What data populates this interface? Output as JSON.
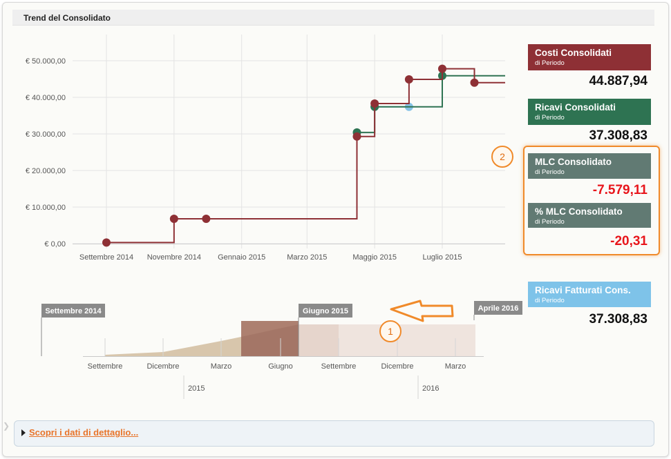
{
  "panel": {
    "title": "Trend del Consolidato"
  },
  "chart_data": {
    "type": "line",
    "y_ticks": [
      "€ 50.000,00",
      "€ 40.000,00",
      "€ 30.000,00",
      "€ 20.000,00",
      "€ 10.000,00",
      "€ 0,00"
    ],
    "ylim": [
      0,
      50000
    ],
    "x_ticks": [
      "Settembre 2014",
      "Novembre 2014",
      "Gennaio 2015",
      "Marzo 2015",
      "Maggio 2015",
      "Luglio 2015"
    ],
    "grid": true,
    "step": true,
    "series": [
      {
        "color": "#8e3035",
        "points": [
          [
            "2014-09-01",
            300
          ],
          [
            "2014-11-01",
            6800
          ],
          [
            "2014-11-30",
            6800
          ],
          [
            "2015-04-15",
            29300
          ],
          [
            "2015-05-01",
            38300
          ],
          [
            "2015-06-01",
            44900
          ],
          [
            "2015-07-01",
            47800
          ],
          [
            "2015-07-30",
            44000
          ]
        ]
      },
      {
        "color": "#2e7352",
        "points": [
          [
            "2015-04-15",
            30400
          ],
          [
            "2015-05-01",
            37400
          ],
          [
            "2015-07-01",
            45900
          ]
        ]
      },
      {
        "color": "#86c3e7",
        "points": [
          [
            "2015-05-01",
            37400
          ],
          [
            "2015-06-01",
            37400
          ]
        ]
      }
    ]
  },
  "kpis": [
    {
      "label": "Costi Consolidati",
      "sub": "di Periodo",
      "value": "44.887,94",
      "color": "#8e3035",
      "negative": false
    },
    {
      "label": "Ricavi Consolidati",
      "sub": "di Periodo",
      "value": "37.308,83",
      "color": "#2e7352",
      "negative": false
    },
    {
      "label": "MLC Consolidato",
      "sub": "di Periodo",
      "value": "-7.579,11",
      "color": "#617a73",
      "negative": true
    },
    {
      "label": "% MLC Consolidato",
      "sub": "di Periodo",
      "value": "-20,31",
      "color": "#617a73",
      "negative": true
    },
    {
      "label": "Ricavi Fatturati Cons.",
      "sub": "di Periodo",
      "value": "37.308,83",
      "color": "#7ec3e9",
      "negative": false
    }
  ],
  "navigator": {
    "start_label": "Settembre 2014",
    "selected_label": "Giugno 2015",
    "end_label": "Aprile 2016",
    "month_ticks": [
      "Settembre",
      "Dicembre",
      "Marzo",
      "Giugno",
      "Settembre",
      "Dicembre",
      "Marzo"
    ],
    "year_ticks": [
      "2015",
      "2016"
    ]
  },
  "callouts": [
    "1",
    "2"
  ],
  "detail_link": "Scopri i dati di dettaglio..."
}
